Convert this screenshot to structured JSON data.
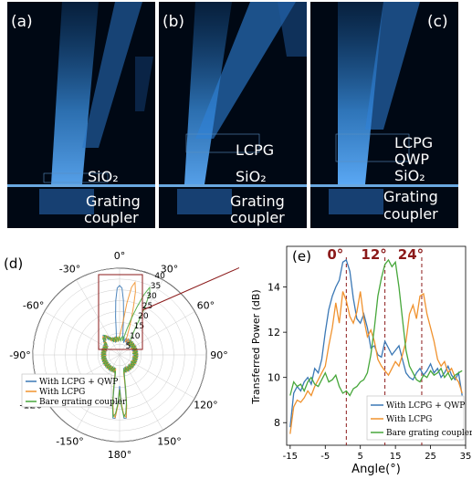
{
  "panels": [
    {
      "label": "(a)",
      "texts": [
        "SiO₂",
        "Grating",
        "coupler"
      ]
    },
    {
      "label": "(b)",
      "texts": [
        "LCPG",
        "SiO₂",
        "Grating",
        "coupler"
      ]
    },
    {
      "label": "(c)",
      "texts": [
        "LCPG",
        "QWP",
        "SiO₂",
        "Grating",
        "coupler"
      ]
    }
  ],
  "polar": {
    "label": "(d)",
    "angle_ticks": [
      "0°",
      "30°",
      "60°",
      "90°",
      "120°",
      "150°",
      "180°",
      "-150°",
      "-120°",
      "-90°",
      "-60°",
      "-30°"
    ],
    "radial_ticks": [
      "5",
      "10",
      "15",
      "20",
      "25",
      "30",
      "35",
      "40"
    ],
    "legend": [
      "With LCPG + QWP",
      "With LCPG",
      "Bare grating coupler"
    ]
  },
  "chart_data": {
    "type": "line",
    "label": "(e)",
    "xlabel": "Angle(°)",
    "ylabel": "Transferred Power (dB)",
    "xlim": [
      -16,
      35
    ],
    "ylim": [
      7,
      15.8
    ],
    "xticks": [
      -15,
      -5,
      5,
      15,
      25,
      35
    ],
    "yticks": [
      8,
      10,
      12,
      14
    ],
    "annotations": [
      {
        "text": "0°",
        "x": 1
      },
      {
        "text": "12°",
        "x": 12
      },
      {
        "text": "24°",
        "x": 22.5
      }
    ],
    "x": [
      -15,
      -14,
      -13,
      -12,
      -11,
      -10,
      -9,
      -8,
      -7,
      -6,
      -5,
      -4,
      -3,
      -2,
      -1,
      0,
      1,
      2,
      3,
      4,
      5,
      6,
      7,
      8,
      9,
      10,
      11,
      12,
      13,
      14,
      15,
      16,
      17,
      18,
      19,
      20,
      21,
      22,
      23,
      24,
      25,
      26,
      27,
      28,
      29,
      30,
      31,
      32,
      33,
      34
    ],
    "series": [
      {
        "name": "With LCPG + QWP",
        "color": "#3b78b5",
        "values": [
          7.8,
          9.3,
          9.6,
          9.4,
          9.8,
          10.0,
          9.7,
          10.4,
          10.2,
          10.8,
          12.0,
          13.0,
          13.6,
          14.0,
          14.3,
          15.1,
          15.2,
          14.7,
          13.5,
          12.6,
          12.4,
          12.8,
          12.2,
          11.3,
          11.4,
          11.0,
          10.9,
          11.6,
          11.3,
          11.0,
          11.2,
          11.4,
          10.8,
          10.2,
          10.0,
          9.9,
          10.2,
          10.4,
          10.1,
          10.3,
          10.6,
          10.2,
          10.4,
          10.0,
          10.2,
          10.5,
          10.1,
          9.9,
          10.2,
          9.2
        ]
      },
      {
        "name": "With LCPG",
        "color": "#f0922e",
        "values": [
          7.5,
          8.7,
          9.0,
          8.9,
          9.1,
          9.4,
          9.2,
          9.6,
          9.9,
          10.2,
          10.5,
          11.4,
          12.2,
          13.3,
          12.4,
          13.8,
          13.4,
          12.7,
          12.4,
          12.9,
          13.8,
          12.6,
          11.8,
          12.1,
          11.6,
          10.8,
          10.5,
          10.3,
          10.1,
          10.4,
          10.7,
          10.5,
          11.0,
          11.6,
          12.8,
          13.2,
          12.6,
          13.6,
          13.7,
          12.8,
          12.2,
          11.6,
          10.8,
          10.5,
          10.7,
          10.2,
          10.4,
          10.0,
          9.8,
          9.3
        ]
      },
      {
        "name": "Bare grating coupler",
        "color": "#47a73b",
        "values": [
          9.2,
          9.8,
          9.6,
          9.7,
          9.4,
          9.8,
          10.0,
          9.7,
          9.6,
          9.9,
          10.2,
          9.8,
          9.9,
          10.1,
          9.6,
          9.3,
          9.4,
          9.2,
          9.5,
          9.6,
          9.8,
          9.9,
          10.2,
          11.0,
          12.2,
          13.6,
          14.4,
          15.0,
          15.2,
          14.9,
          15.1,
          14.0,
          12.6,
          11.2,
          10.5,
          10.2,
          9.9,
          9.8,
          10.1,
          10.0,
          10.3,
          10.1,
          10.2,
          10.4,
          10.0,
          10.2,
          9.9,
          10.1,
          10.2,
          10.3
        ]
      }
    ]
  }
}
